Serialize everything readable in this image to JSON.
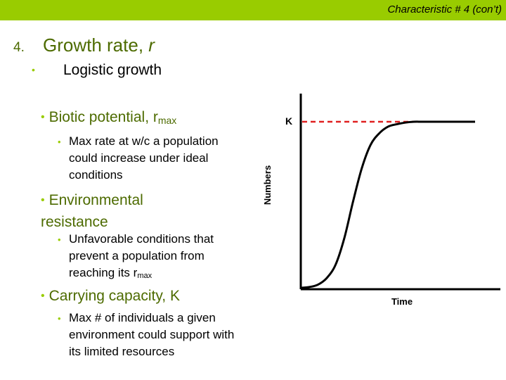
{
  "header": {
    "title": "Characteristic # 4 (con’t)"
  },
  "heading": {
    "number": "4.",
    "text": "Growth rate, ",
    "symbol": "r"
  },
  "subheading": {
    "bullet": "•",
    "text": "Logistic growth"
  },
  "items": [
    {
      "title": "Biotic potential, r",
      "title_sub": "max",
      "details": [
        {
          "text": "Max rate at w/c a population could increase under ideal conditions"
        }
      ]
    },
    {
      "title": "Environmental resistance",
      "details": [
        {
          "text": "Unfavorable conditions that prevent a population from reaching its r",
          "sub": "max"
        }
      ]
    },
    {
      "title": "Carrying capacity, K",
      "details": [
        {
          "text": "Max # of individuals a given environment could support with its limited resources"
        }
      ]
    }
  ],
  "chart_data": {
    "type": "line",
    "title": "",
    "xlabel": "Time",
    "ylabel": "Numbers",
    "annotations": [
      "K"
    ],
    "series": [
      {
        "x": [
          0,
          0.05,
          0.1,
          0.15,
          0.2,
          0.25,
          0.3,
          0.35,
          0.4,
          0.45,
          0.5,
          0.55,
          0.6,
          0.65,
          0.7,
          0.8,
          0.9,
          1.0
        ],
        "values": [
          0.0,
          0.005,
          0.02,
          0.06,
          0.14,
          0.3,
          0.52,
          0.72,
          0.86,
          0.93,
          0.97,
          0.985,
          0.995,
          1.0,
          1.0,
          1.0,
          1.0,
          1.0
        ]
      }
    ],
    "carrying_capacity_line": {
      "value": 1.0,
      "style": "dashed",
      "color": "#e02020"
    },
    "curve_color": "#000000"
  }
}
